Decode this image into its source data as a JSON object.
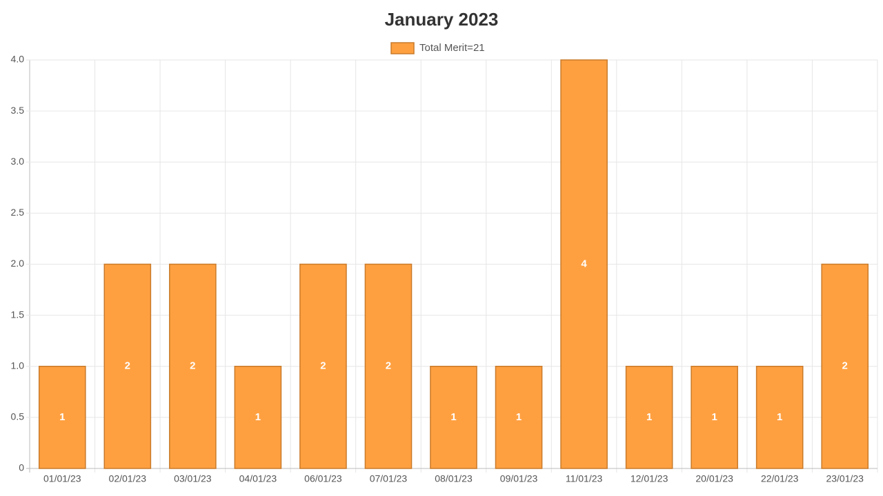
{
  "chart_data": {
    "type": "bar",
    "title": "January 2023",
    "categories": [
      "01/01/23",
      "02/01/23",
      "03/01/23",
      "04/01/23",
      "06/01/23",
      "07/01/23",
      "08/01/23",
      "09/01/23",
      "11/01/23",
      "12/01/23",
      "20/01/23",
      "22/01/23",
      "23/01/23"
    ],
    "series": [
      {
        "name": "Total Merit=21",
        "color": "#ffa040",
        "edge_color": "#c97a2a",
        "values": [
          1,
          2,
          2,
          1,
          2,
          2,
          1,
          1,
          4,
          1,
          1,
          1,
          2
        ]
      }
    ],
    "ylim": [
      0,
      4
    ],
    "yticks": [
      0,
      0.5,
      {
        "value": 1,
        "label": "1.0"
      },
      1.5,
      {
        "value": 2,
        "label": "2.0"
      },
      2.5,
      {
        "value": 3,
        "label": "3.0"
      },
      3.5,
      {
        "value": 4,
        "label": "4.0"
      }
    ],
    "grid": true,
    "legend": "top",
    "data_labels": true
  }
}
